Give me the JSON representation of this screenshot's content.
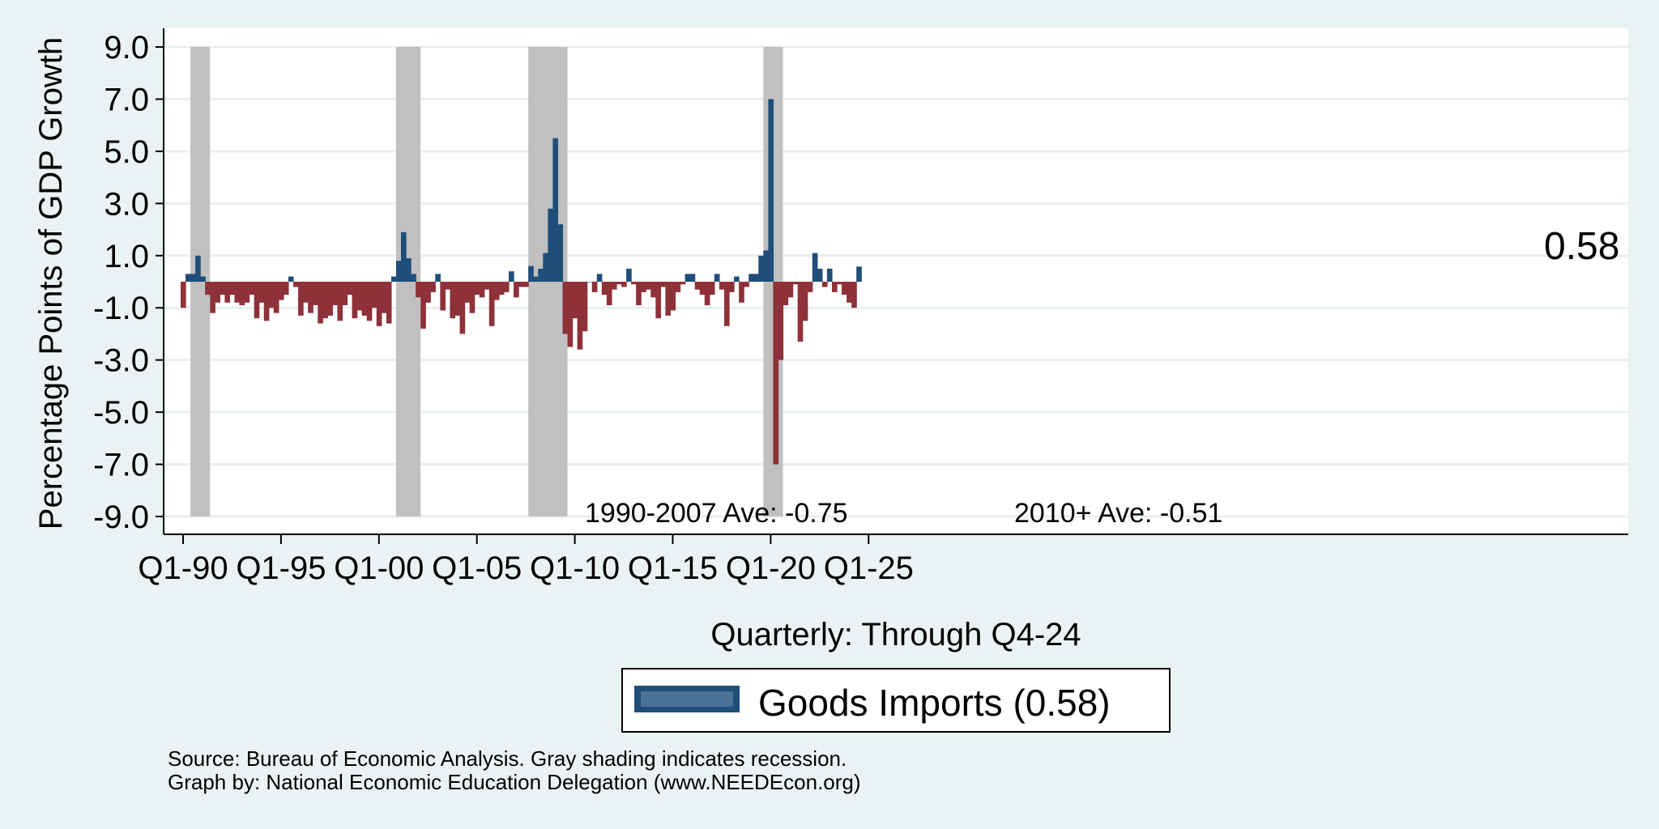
{
  "chart_data": {
    "type": "bar",
    "title": "",
    "xlabel": "Quarterly: Through Q4-24",
    "ylabel": "Percentage Points of GDP Growth",
    "ylim": [
      -9.0,
      9.0
    ],
    "yticks": [
      "9.0",
      "7.0",
      "5.0",
      "3.0",
      "1.0",
      "-1.0",
      "-3.0",
      "-5.0",
      "-7.0",
      "-9.0"
    ],
    "xticks": [
      "Q1-90",
      "Q1-95",
      "Q1-00",
      "Q1-05",
      "Q1-10",
      "Q1-15",
      "Q1-20",
      "Q1-25"
    ],
    "x_start": "Q1-90",
    "x_end": "Q4-24",
    "positive_color": "#1f4e79",
    "negative_color": "#8e3138",
    "recession_color": "#c0c0c0",
    "recessions": [
      {
        "start": "Q3-90",
        "end": "Q1-91"
      },
      {
        "start": "Q1-01",
        "end": "Q4-01"
      },
      {
        "start": "Q4-07",
        "end": "Q2-09"
      },
      {
        "start": "Q4-19",
        "end": "Q2-20"
      }
    ],
    "annotations": [
      {
        "text": "1990-2007 Ave: -0.75"
      },
      {
        "text": "2010+ Ave: -0.51"
      }
    ],
    "end_label": "0.58",
    "legend": {
      "label": "Goods Imports (0.58)",
      "position": "bottom"
    },
    "series": [
      {
        "name": "Goods Imports",
        "values": [
          -1.0,
          0.3,
          0.3,
          1.0,
          0.2,
          -0.5,
          -1.2,
          -0.8,
          -0.5,
          -0.8,
          -0.5,
          -0.8,
          -0.9,
          -0.8,
          -0.5,
          -1.4,
          -0.8,
          -1.5,
          -1.0,
          -1.2,
          -0.7,
          -0.5,
          0.2,
          -0.2,
          -1.3,
          -0.8,
          -1.2,
          -0.9,
          -1.6,
          -1.4,
          -1.3,
          -0.9,
          -1.5,
          -0.9,
          -0.5,
          -1.4,
          -1.1,
          -1.3,
          -1.5,
          -1.0,
          -1.7,
          -1.2,
          -1.6,
          0.2,
          0.8,
          1.9,
          0.9,
          0.3,
          -0.6,
          -1.8,
          -0.8,
          -0.4,
          0.3,
          -1.1,
          -0.3,
          -1.4,
          -1.3,
          -2.0,
          -0.8,
          -1.2,
          -0.5,
          -0.6,
          -0.3,
          -1.7,
          -0.7,
          -0.5,
          -0.4,
          0.4,
          -0.6,
          -0.2,
          -0.2,
          0.6,
          0.2,
          0.5,
          1.1,
          2.8,
          5.5,
          2.2,
          -2.0,
          -2.5,
          -1.4,
          -2.6,
          -1.9,
          0.0,
          -0.4,
          0.3,
          -0.5,
          -0.9,
          -0.3,
          -0.1,
          -0.2,
          0.5,
          -0.1,
          -0.9,
          -0.4,
          -0.3,
          -0.6,
          -1.4,
          -0.2,
          -1.3,
          -1.1,
          -0.4,
          -0.1,
          0.3,
          0.3,
          -0.3,
          -0.5,
          -0.9,
          -0.5,
          0.3,
          -0.3,
          -1.7,
          -0.4,
          0.2,
          -0.8,
          -0.2,
          0.3,
          0.3,
          1.0,
          1.2,
          7.0,
          -7.0,
          -3.0,
          -0.9,
          -0.6,
          -0.1,
          -2.3,
          -1.5,
          -0.4,
          1.1,
          0.5,
          -0.2,
          0.5,
          -0.4,
          -0.1,
          -0.5,
          -0.8,
          -1.0,
          0.58
        ]
      }
    ]
  },
  "source_note": "Source: Bureau of Economic Analysis. Gray shading indicates recession.",
  "credit_note": "Graph by: National Economic Education Delegation (www.NEEDEcon.org)"
}
